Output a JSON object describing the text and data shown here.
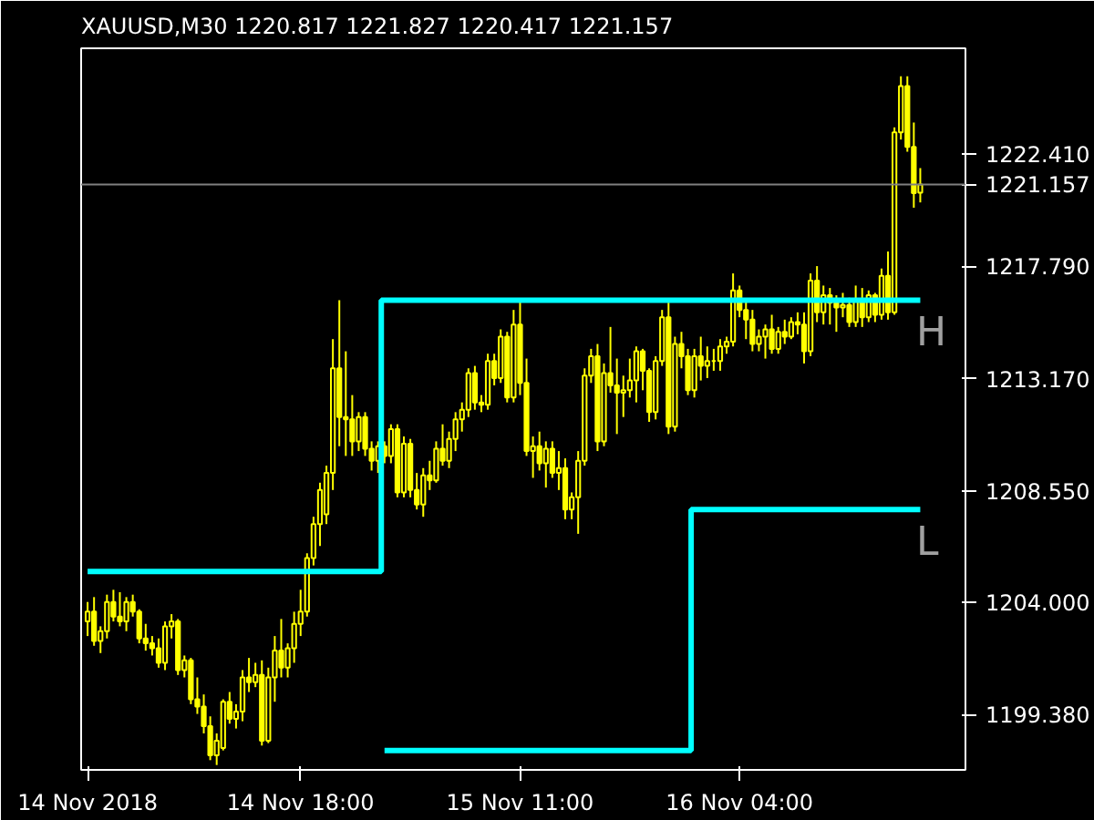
{
  "chart_data": {
    "type": "candlestick",
    "title": "XAUUSD,M30  1220.817 1221.827 1220.417 1221.157",
    "ylim": [
      1197.1,
      1226.75
    ],
    "categories": [
      "14 Nov 2018",
      null,
      null,
      null,
      null,
      null,
      null,
      null,
      null,
      null,
      null,
      null,
      null,
      null,
      null,
      null,
      null,
      null,
      null,
      null,
      null,
      null,
      null,
      null,
      null,
      null,
      null,
      null,
      null,
      null,
      null,
      null,
      null,
      "14 Nov 18:00",
      null,
      null,
      null,
      null,
      null,
      null,
      null,
      null,
      null,
      null,
      null,
      null,
      null,
      null,
      null,
      null,
      null,
      null,
      null,
      null,
      null,
      null,
      null,
      null,
      null,
      null,
      null,
      null,
      null,
      null,
      null,
      null,
      null,
      "15 Nov 11:00",
      null,
      null,
      null,
      null,
      null,
      null,
      null,
      null,
      null,
      null,
      null,
      null,
      null,
      null,
      null,
      null,
      null,
      null,
      null,
      null,
      null,
      null,
      null,
      null,
      null,
      null,
      null,
      null,
      null,
      null,
      null,
      null,
      null,
      "16 Nov 04:00",
      null,
      null,
      null,
      null,
      null,
      null,
      null,
      null,
      null,
      null,
      null,
      null,
      null,
      null,
      null,
      null,
      null,
      null,
      null,
      null,
      null,
      null,
      null,
      null,
      null,
      null,
      null,
      null
    ],
    "yticks": [
      {
        "value": 1199.38,
        "label": "1199.380"
      },
      {
        "value": 1204,
        "label": "1204.000"
      },
      {
        "value": 1208.55,
        "label": "1208.550"
      },
      {
        "value": 1213.17,
        "label": "1213.170"
      },
      {
        "value": 1217.79,
        "label": "1217.790"
      },
      {
        "value": 1222.41,
        "label": "1222.410"
      }
    ],
    "ref_lines": [
      {
        "axis": "y",
        "value": 1221.157,
        "label": "1221.157",
        "color": "#808080"
      }
    ],
    "legend": false,
    "series": [
      {
        "color": "#ffff00",
        "ohlc": [
          [
            1203.2,
            1204.0,
            1202.6,
            1203.6
          ],
          [
            1203.6,
            1204.2,
            1202.2,
            1202.4
          ],
          [
            1202.4,
            1203.0,
            1201.9,
            1202.8
          ],
          [
            1202.8,
            1204.3,
            1202.5,
            1204.0
          ],
          [
            1204.0,
            1204.5,
            1203.2,
            1203.4
          ],
          [
            1203.4,
            1204.4,
            1203.0,
            1203.2
          ],
          [
            1203.2,
            1204.2,
            1202.8,
            1204.0
          ],
          [
            1204.0,
            1204.3,
            1203.4,
            1203.6
          ],
          [
            1203.6,
            1203.7,
            1202.3,
            1202.5
          ],
          [
            1202.5,
            1203.1,
            1202.0,
            1202.3
          ],
          [
            1202.3,
            1202.6,
            1201.8,
            1202.1
          ],
          [
            1202.1,
            1202.5,
            1201.3,
            1201.5
          ],
          [
            1201.5,
            1203.2,
            1201.2,
            1203.0
          ],
          [
            1203.0,
            1203.5,
            1202.5,
            1203.2
          ],
          [
            1203.2,
            1203.3,
            1201.0,
            1201.2
          ],
          [
            1201.2,
            1201.8,
            1200.9,
            1201.6
          ],
          [
            1201.6,
            1201.7,
            1199.8,
            1200.0
          ],
          [
            1200.0,
            1200.9,
            1199.4,
            1199.7
          ],
          [
            1199.7,
            1200.2,
            1198.6,
            1198.9
          ],
          [
            1198.9,
            1199.3,
            1197.5,
            1197.7
          ],
          [
            1197.7,
            1198.6,
            1197.3,
            1198.3
          ],
          [
            1198.0,
            1200.0,
            1197.9,
            1199.9
          ],
          [
            1199.9,
            1200.3,
            1199.0,
            1199.2
          ],
          [
            1199.2,
            1199.8,
            1198.8,
            1199.5
          ],
          [
            1199.5,
            1201.2,
            1199.1,
            1200.9
          ],
          [
            1200.9,
            1201.7,
            1200.3,
            1200.7
          ],
          [
            1200.7,
            1201.5,
            1200.5,
            1201.0
          ],
          [
            1201.0,
            1201.6,
            1198.1,
            1198.3
          ],
          [
            1198.3,
            1201.3,
            1198.2,
            1200.9
          ],
          [
            1200.9,
            1202.6,
            1199.9,
            1202.0
          ],
          [
            1202.0,
            1203.3,
            1200.9,
            1201.3
          ],
          [
            1201.3,
            1202.3,
            1200.9,
            1202.1
          ],
          [
            1202.1,
            1203.6,
            1201.5,
            1203.1
          ],
          [
            1203.1,
            1204.5,
            1202.6,
            1203.6
          ],
          [
            1203.6,
            1206.0,
            1203.4,
            1205.8
          ],
          [
            1205.8,
            1207.5,
            1205.5,
            1207.2
          ],
          [
            1207.2,
            1208.9,
            1206.3,
            1208.6
          ],
          [
            1207.6,
            1209.6,
            1207.2,
            1209.3
          ],
          [
            1209.3,
            1214.8,
            1208.6,
            1213.6
          ],
          [
            1213.6,
            1216.4,
            1210.4,
            1211.6
          ],
          [
            1211.6,
            1214.3,
            1210.0,
            1211.5
          ],
          [
            1211.5,
            1212.5,
            1210.0,
            1210.6
          ],
          [
            1210.6,
            1211.8,
            1210.2,
            1211.6
          ],
          [
            1211.6,
            1211.8,
            1210.0,
            1210.3
          ],
          [
            1210.3,
            1210.6,
            1209.4,
            1209.8
          ],
          [
            1209.8,
            1210.6,
            1209.3,
            1210.4
          ],
          [
            1210.4,
            1210.6,
            1209.7,
            1210.0
          ],
          [
            1210.0,
            1211.3,
            1209.7,
            1211.1
          ],
          [
            1211.1,
            1211.3,
            1208.3,
            1208.5
          ],
          [
            1208.5,
            1210.8,
            1208.3,
            1210.5
          ],
          [
            1210.5,
            1210.7,
            1208.3,
            1208.6
          ],
          [
            1208.6,
            1209.3,
            1207.8,
            1208.0
          ],
          [
            1208.0,
            1209.5,
            1207.5,
            1209.2
          ],
          [
            1209.2,
            1209.8,
            1208.6,
            1209.0
          ],
          [
            1209.0,
            1210.6,
            1208.9,
            1210.3
          ],
          [
            1210.3,
            1211.3,
            1209.6,
            1209.8
          ],
          [
            1209.8,
            1211.0,
            1209.5,
            1210.7
          ],
          [
            1210.7,
            1211.8,
            1210.2,
            1211.5
          ],
          [
            1211.5,
            1212.2,
            1211.0,
            1211.9
          ],
          [
            1211.9,
            1213.6,
            1211.6,
            1213.4
          ],
          [
            1213.4,
            1213.7,
            1211.9,
            1212.2
          ],
          [
            1212.2,
            1212.5,
            1211.8,
            1212.1
          ],
          [
            1212.1,
            1214.2,
            1211.9,
            1213.9
          ],
          [
            1213.9,
            1214.2,
            1212.9,
            1213.2
          ],
          [
            1213.2,
            1215.2,
            1213.0,
            1214.9
          ],
          [
            1214.9,
            1215.1,
            1212.2,
            1212.4
          ],
          [
            1212.4,
            1216.0,
            1212.2,
            1215.4
          ],
          [
            1215.4,
            1216.4,
            1212.5,
            1213.0
          ],
          [
            1213.0,
            1214.0,
            1210.0,
            1210.2
          ],
          [
            1210.2,
            1210.8,
            1209.1,
            1210.4
          ],
          [
            1210.4,
            1211.0,
            1209.4,
            1209.7
          ],
          [
            1209.7,
            1210.6,
            1208.7,
            1210.3
          ],
          [
            1210.3,
            1210.6,
            1209.1,
            1209.3
          ],
          [
            1209.3,
            1210.2,
            1208.6,
            1209.5
          ],
          [
            1209.5,
            1209.9,
            1207.4,
            1207.8
          ],
          [
            1207.8,
            1208.5,
            1207.4,
            1208.3
          ],
          [
            1208.3,
            1210.2,
            1206.8,
            1209.8
          ],
          [
            1209.8,
            1213.6,
            1209.6,
            1213.3
          ],
          [
            1213.3,
            1214.4,
            1213.0,
            1214.1
          ],
          [
            1214.1,
            1214.6,
            1210.2,
            1210.6
          ],
          [
            1210.6,
            1213.8,
            1210.4,
            1213.4
          ],
          [
            1213.4,
            1215.3,
            1212.6,
            1212.9
          ],
          [
            1212.9,
            1214.0,
            1210.9,
            1212.6
          ],
          [
            1212.6,
            1213.3,
            1211.6,
            1212.7
          ],
          [
            1212.7,
            1214.0,
            1212.4,
            1213.1
          ],
          [
            1213.1,
            1214.5,
            1212.2,
            1214.3
          ],
          [
            1214.3,
            1214.4,
            1212.7,
            1213.5
          ],
          [
            1213.5,
            1213.6,
            1211.4,
            1211.8
          ],
          [
            1211.8,
            1214.1,
            1211.5,
            1213.9
          ],
          [
            1213.9,
            1216.0,
            1213.7,
            1215.7
          ],
          [
            1215.7,
            1216.3,
            1210.9,
            1211.2
          ],
          [
            1211.2,
            1214.9,
            1211.0,
            1214.6
          ],
          [
            1214.6,
            1215.1,
            1213.6,
            1214.1
          ],
          [
            1214.1,
            1214.4,
            1212.5,
            1212.7
          ],
          [
            1212.7,
            1214.4,
            1212.4,
            1214.1
          ],
          [
            1214.1,
            1214.9,
            1213.1,
            1213.7
          ],
          [
            1213.7,
            1214.5,
            1213.2,
            1213.9
          ],
          [
            1213.9,
            1214.4,
            1213.5,
            1213.9
          ],
          [
            1213.9,
            1214.8,
            1213.5,
            1214.5
          ],
          [
            1214.5,
            1214.9,
            1214.2,
            1214.7
          ],
          [
            1214.7,
            1217.5,
            1214.5,
            1216.8
          ],
          [
            1216.8,
            1217.0,
            1215.7,
            1216.0
          ],
          [
            1216.0,
            1216.4,
            1214.8,
            1215.6
          ],
          [
            1215.6,
            1216.0,
            1214.3,
            1214.6
          ],
          [
            1214.6,
            1215.2,
            1214.3,
            1214.9
          ],
          [
            1214.9,
            1215.4,
            1214.0,
            1215.2
          ],
          [
            1215.2,
            1215.8,
            1214.2,
            1214.4
          ],
          [
            1214.4,
            1215.3,
            1214.2,
            1215.1
          ],
          [
            1215.1,
            1215.6,
            1214.6,
            1214.9
          ],
          [
            1214.9,
            1215.7,
            1214.8,
            1215.5
          ],
          [
            1215.5,
            1215.9,
            1215.0,
            1215.4
          ],
          [
            1215.4,
            1215.9,
            1213.8,
            1214.3
          ],
          [
            1214.3,
            1217.5,
            1214.1,
            1217.2
          ],
          [
            1217.2,
            1217.8,
            1215.5,
            1215.9
          ],
          [
            1215.9,
            1217.0,
            1215.4,
            1216.6
          ],
          [
            1216.6,
            1216.9,
            1215.4,
            1216.3
          ],
          [
            1216.3,
            1216.6,
            1215.1,
            1216.1
          ],
          [
            1216.1,
            1216.7,
            1215.7,
            1216.2
          ],
          [
            1216.2,
            1216.5,
            1215.3,
            1215.5
          ],
          [
            1215.5,
            1217.0,
            1215.3,
            1216.4
          ],
          [
            1216.4,
            1216.9,
            1215.3,
            1215.7
          ],
          [
            1215.7,
            1216.8,
            1215.5,
            1216.6
          ],
          [
            1216.6,
            1216.7,
            1215.5,
            1215.8
          ],
          [
            1215.8,
            1217.7,
            1215.6,
            1217.4
          ],
          [
            1217.4,
            1218.4,
            1215.6,
            1215.9
          ],
          [
            1215.9,
            1223.5,
            1215.8,
            1223.3
          ],
          [
            1223.3,
            1225.6,
            1223.0,
            1225.2
          ],
          [
            1225.2,
            1225.6,
            1222.5,
            1222.7
          ],
          [
            1222.7,
            1223.7,
            1220.2,
            1220.8
          ],
          [
            1220.817,
            1221.827,
            1220.417,
            1221.157
          ]
        ]
      },
      {
        "type": "step",
        "name": "H",
        "color": "#00ffff",
        "values": [
          1205.25,
          1205.25,
          1205.25,
          1205.25,
          1205.25,
          1205.25,
          1205.25,
          1205.25,
          1205.25,
          1205.25,
          1205.25,
          1205.25,
          1205.25,
          1205.25,
          1205.25,
          1205.25,
          1205.25,
          1205.25,
          1205.25,
          1205.25,
          1205.25,
          1205.25,
          1205.25,
          1205.25,
          1205.25,
          1205.25,
          1205.25,
          1205.25,
          1205.25,
          1205.25,
          1205.25,
          1205.25,
          1205.25,
          1205.25,
          1205.25,
          1205.25,
          1205.25,
          1205.25,
          1205.25,
          1205.25,
          1205.25,
          1205.25,
          1205.25,
          1205.25,
          1205.25,
          1205.25,
          1216.4,
          1216.4,
          1216.4,
          1216.4,
          1216.4,
          1216.4,
          1216.4,
          1216.4,
          1216.4,
          1216.4,
          1216.4,
          1216.4,
          1216.4,
          1216.4,
          1216.4,
          1216.4,
          1216.4,
          1216.4,
          1216.4,
          1216.4,
          1216.4,
          1216.4,
          1216.4,
          1216.4,
          1216.4,
          1216.4,
          1216.4,
          1216.4,
          1216.4,
          1216.4,
          1216.4,
          1216.4,
          1216.4,
          1216.4,
          1216.4,
          1216.4,
          1216.4,
          1216.4,
          1216.4,
          1216.4,
          1216.4,
          1216.4,
          1216.4,
          1216.4,
          1216.4,
          1216.4,
          1216.4,
          1216.4,
          1216.4,
          1216.4,
          1216.4,
          1216.4,
          1216.4,
          1216.4,
          1216.4,
          1216.4,
          1216.4,
          1216.4,
          1216.4,
          1216.4,
          1216.4,
          1216.4,
          1216.4,
          1216.4,
          1216.4,
          1216.4,
          1216.4,
          1216.4,
          1216.4,
          1216.4,
          1216.4,
          1216.4,
          1216.4,
          1216.4,
          1216.4,
          1216.4,
          1216.4,
          1216.4,
          1216.4,
          1216.4,
          1216.4,
          1216.4,
          1216.4,
          1216.4
        ]
      },
      {
        "type": "step",
        "name": "L",
        "color": "#00ffff",
        "values": [
          null,
          null,
          null,
          null,
          null,
          null,
          null,
          null,
          null,
          null,
          null,
          null,
          null,
          null,
          null,
          null,
          null,
          null,
          null,
          null,
          null,
          null,
          null,
          null,
          null,
          null,
          null,
          null,
          null,
          null,
          null,
          null,
          null,
          null,
          null,
          null,
          null,
          null,
          null,
          null,
          null,
          null,
          null,
          null,
          null,
          null,
          1197.9,
          1197.9,
          1197.9,
          1197.9,
          1197.9,
          1197.9,
          1197.9,
          1197.9,
          1197.9,
          1197.9,
          1197.9,
          1197.9,
          1197.9,
          1197.9,
          1197.9,
          1197.9,
          1197.9,
          1197.9,
          1197.9,
          1197.9,
          1197.9,
          1197.9,
          1197.9,
          1197.9,
          1197.9,
          1197.9,
          1197.9,
          1197.9,
          1197.9,
          1197.9,
          1197.9,
          1197.9,
          1197.9,
          1197.9,
          1197.9,
          1197.9,
          1197.9,
          1197.9,
          1197.9,
          1197.9,
          1197.9,
          1197.9,
          1197.9,
          1197.9,
          1197.9,
          1197.9,
          1197.9,
          1197.9,
          1207.8,
          1207.8,
          1207.8,
          1207.8,
          1207.8,
          1207.8,
          1207.8,
          1207.8,
          1207.8,
          1207.8,
          1207.8,
          1207.8,
          1207.8,
          1207.8,
          1207.8,
          1207.8,
          1207.8,
          1207.8,
          1207.8,
          1207.8,
          1207.8,
          1207.8,
          1207.8,
          1207.8,
          1207.8,
          1207.8,
          1207.8,
          1207.8,
          1207.8,
          1207.8,
          1207.8,
          1207.8,
          1207.8,
          1207.8,
          1207.8,
          1207.8
        ]
      }
    ]
  }
}
